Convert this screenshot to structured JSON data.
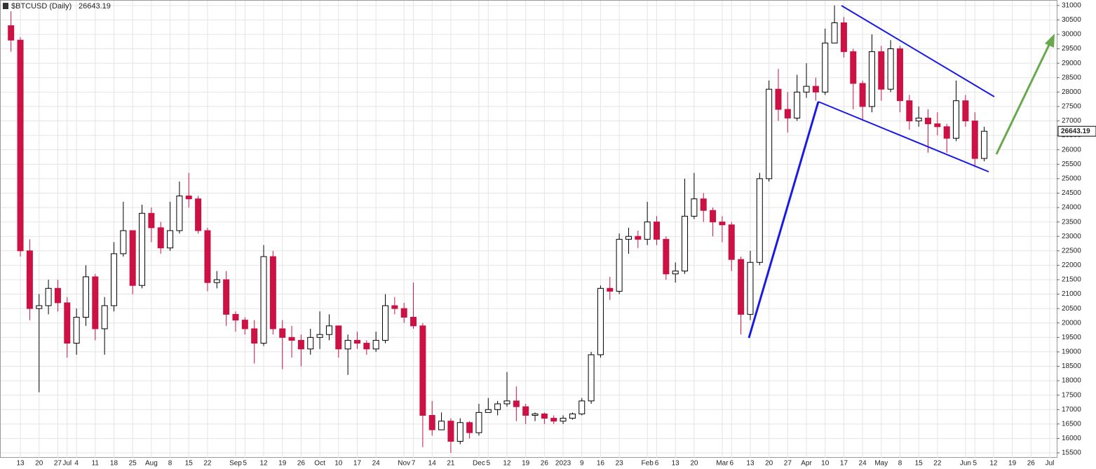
{
  "chart_data": {
    "type": "candlestick",
    "title": "$BTCUSD (Daily)",
    "categories": [
      null,
      "13",
      null,
      "20",
      null,
      "27",
      "Jul",
      "4",
      null,
      "11",
      null,
      "18",
      null,
      "25",
      null,
      "Aug",
      null,
      "8",
      null,
      "15",
      null,
      "22",
      null,
      null,
      "Sep",
      "5",
      null,
      "12",
      null,
      "19",
      null,
      "26",
      null,
      "Oct",
      null,
      "10",
      null,
      "17",
      null,
      "24",
      null,
      null,
      "Nov",
      "7",
      null,
      "14",
      null,
      "21",
      null,
      null,
      "Dec",
      "5",
      null,
      "12",
      null,
      "19",
      null,
      "26",
      null,
      "2023",
      null,
      "9",
      null,
      "16",
      null,
      "23",
      null,
      null,
      "Feb",
      "6",
      null,
      "13",
      null,
      "20",
      null,
      null,
      "Mar",
      "6",
      null,
      "13",
      null,
      "20",
      null,
      "27",
      null,
      "Apr",
      null,
      "10",
      null,
      "17",
      null,
      "24",
      null,
      "May",
      null,
      "8",
      null,
      "15",
      null,
      "22",
      null,
      null,
      "Jun",
      "5",
      null,
      "12",
      null,
      "19",
      null,
      "26",
      null,
      "Jul"
    ],
    "open": [
      30300,
      29800,
      22500,
      20500,
      20600,
      21200,
      20700,
      19300,
      20200,
      21600,
      19800,
      20600,
      22400,
      23200,
      21300,
      23800,
      23300,
      22600,
      23200,
      24400,
      24300,
      23200,
      21400,
      21500,
      20300,
      20100,
      19800,
      19300,
      22300,
      19800,
      19500,
      19400,
      19100,
      19500,
      19600,
      19900,
      19100,
      19400,
      19300,
      19100,
      19400,
      20600,
      20500,
      20200,
      19900,
      16800,
      16300,
      16600,
      15900,
      16550,
      16200,
      16900,
      17000,
      17200,
      17300,
      17100,
      16800,
      16850,
      16700,
      16600,
      16700,
      16850,
      17300,
      18900,
      21200,
      21100,
      22900,
      23000,
      22900,
      23500,
      22900,
      21700,
      21800,
      23700,
      24300,
      23900,
      23500,
      23400,
      22200,
      20300,
      22100,
      25000,
      28100,
      27400,
      27100,
      28000,
      28200,
      28000,
      29700,
      30400,
      29400,
      28300,
      27500,
      29400,
      28100,
      29500,
      27700,
      27000,
      27100,
      26900,
      26800,
      26400,
      27700,
      27000,
      25700,
      null,
      null,
      null,
      null,
      null,
      null,
      null
    ],
    "high": [
      30800,
      29900,
      22900,
      21000,
      21500,
      21500,
      20900,
      20500,
      22000,
      21700,
      20900,
      22800,
      24200,
      23200,
      24100,
      24000,
      23500,
      24200,
      24900,
      25200,
      24400,
      23300,
      21800,
      21800,
      20400,
      20200,
      20100,
      22700,
      22500,
      20100,
      19900,
      19600,
      19800,
      20400,
      20300,
      19900,
      19600,
      19700,
      19400,
      19700,
      21000,
      20900,
      20700,
      21400,
      20000,
      17300,
      16900,
      16700,
      16700,
      16600,
      17200,
      17400,
      17300,
      18300,
      17800,
      17200,
      16900,
      16900,
      16800,
      16800,
      16900,
      17400,
      19000,
      21300,
      21600,
      23100,
      23300,
      23200,
      24200,
      23700,
      23000,
      22100,
      25000,
      25200,
      24500,
      24000,
      23700,
      23500,
      22300,
      22500,
      25200,
      28400,
      28800,
      28000,
      28600,
      29000,
      28500,
      30200,
      31000,
      30600,
      29500,
      28400,
      30000,
      29600,
      29800,
      29600,
      27900,
      27500,
      27400,
      27300,
      26900,
      28400,
      27900,
      27300,
      26800,
      null,
      null,
      null,
      null,
      null,
      null,
      null
    ],
    "low": [
      29400,
      22300,
      20100,
      17600,
      20300,
      20400,
      18800,
      18900,
      19900,
      19400,
      18900,
      20400,
      22300,
      21000,
      21200,
      22800,
      22400,
      22500,
      23100,
      24000,
      23100,
      21100,
      21200,
      19900,
      19700,
      19600,
      18600,
      19200,
      19600,
      18400,
      18800,
      18500,
      18900,
      19100,
      19400,
      18800,
      18200,
      19100,
      18900,
      19000,
      19300,
      20300,
      20000,
      19800,
      15700,
      16100,
      16300,
      15500,
      15800,
      16000,
      16100,
      16900,
      16800,
      17100,
      16600,
      16500,
      16600,
      16500,
      16500,
      16500,
      16650,
      16800,
      17200,
      18800,
      20800,
      21000,
      22400,
      22600,
      22700,
      22700,
      21500,
      21400,
      21700,
      23600,
      23500,
      23000,
      22800,
      21800,
      19600,
      20100,
      22000,
      24900,
      27000,
      26600,
      27000,
      27800,
      27700,
      27900,
      29700,
      29200,
      27400,
      27000,
      27300,
      27700,
      28000,
      27300,
      26700,
      26800,
      25900,
      26500,
      25900,
      26300,
      26800,
      25400,
      25600,
      null,
      null,
      null,
      null,
      null,
      null,
      null
    ],
    "close": [
      29800,
      22500,
      20500,
      20600,
      21200,
      20700,
      19300,
      20200,
      21600,
      19800,
      20600,
      22400,
      23200,
      21300,
      23800,
      23300,
      22600,
      23200,
      24400,
      24300,
      23200,
      21400,
      21500,
      20300,
      20100,
      19800,
      19300,
      22300,
      19800,
      19500,
      19400,
      19100,
      19500,
      19600,
      19900,
      19100,
      19400,
      19300,
      19100,
      19400,
      20600,
      20500,
      20200,
      19900,
      16800,
      16300,
      16600,
      15900,
      16550,
      16200,
      16900,
      17000,
      17200,
      17300,
      17100,
      16800,
      16850,
      16700,
      16600,
      16700,
      16850,
      17300,
      18900,
      21200,
      21100,
      22900,
      23000,
      22900,
      23500,
      22900,
      21700,
      21800,
      23700,
      24300,
      23900,
      23500,
      23400,
      22200,
      20300,
      22100,
      25000,
      28100,
      27400,
      27100,
      28000,
      28200,
      28000,
      29700,
      30400,
      29400,
      28300,
      27500,
      29400,
      28100,
      29500,
      27700,
      27000,
      27100,
      26900,
      26800,
      26400,
      27700,
      27000,
      25700,
      26643.19,
      null,
      null,
      null,
      null,
      null,
      null,
      null
    ],
    "ylim": [
      15330,
      31190
    ],
    "yticks": [
      15500,
      16000,
      16500,
      17000,
      17500,
      18000,
      18500,
      19000,
      19500,
      20000,
      20500,
      21000,
      21500,
      22000,
      22500,
      23000,
      23500,
      24000,
      24500,
      25000,
      25500,
      26000,
      26500,
      27000,
      27500,
      28000,
      28500,
      29000,
      29500,
      30000,
      30500,
      31000
    ],
    "grid": true,
    "up_color": "#000000",
    "down_color": "#cc1144"
  }
}
